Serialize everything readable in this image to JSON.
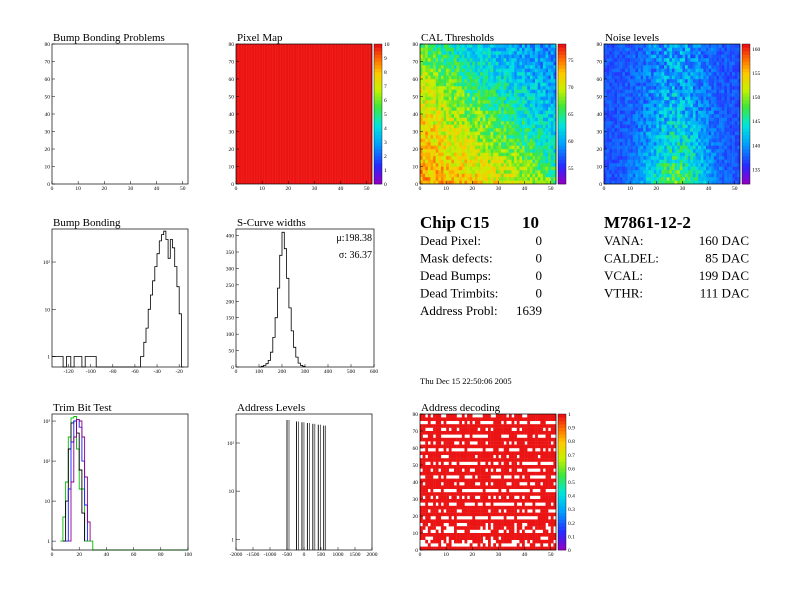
{
  "page": {
    "chip_title": "Chip C15",
    "chip_grade": "10",
    "module_title": "M7861-12-2",
    "date": "Thu Dec 15 22:50:06 2005",
    "chip_stats": [
      {
        "label": "Dead Pixel:",
        "value": "0"
      },
      {
        "label": "Mask defects:",
        "value": "0"
      },
      {
        "label": "Dead Bumps:",
        "value": "0"
      },
      {
        "label": "Dead Trimbits:",
        "value": "0"
      },
      {
        "label": "Address Probl:",
        "value": "1639"
      }
    ],
    "module_stats": [
      {
        "label": "VANA:",
        "value": "160 DAC"
      },
      {
        "label": "CALDEL:",
        "value": "85 DAC"
      },
      {
        "label": "VCAL:",
        "value": "199 DAC"
      },
      {
        "label": "VTHR:",
        "value": "111 DAC"
      }
    ]
  },
  "chart_data": [
    {
      "id": "bump-bonding-problems",
      "type": "heatmap",
      "title": "Bump Bonding Problems",
      "xlim": [
        0,
        52
      ],
      "ylim": [
        0,
        80
      ],
      "xticks": [
        "0",
        "10",
        "20",
        "30",
        "40",
        "50"
      ],
      "yticks": [
        "0",
        "10",
        "20",
        "30",
        "40",
        "50",
        "60",
        "70",
        "80"
      ],
      "fill": "empty",
      "colorbar": null
    },
    {
      "id": "pixel-map",
      "type": "heatmap",
      "title": "Pixel Map",
      "xlim": [
        0,
        52
      ],
      "ylim": [
        0,
        80
      ],
      "xticks": [
        "0",
        "10",
        "20",
        "30",
        "40",
        "50"
      ],
      "yticks": [
        "0",
        "10",
        "20",
        "30",
        "40",
        "50",
        "60",
        "70",
        "80"
      ],
      "fill": "uniform",
      "value": 10,
      "colorbar": {
        "min": 0,
        "max": 10,
        "ticks": [
          "0",
          "1",
          "2",
          "3",
          "4",
          "5",
          "6",
          "7",
          "8",
          "9",
          "10"
        ]
      }
    },
    {
      "id": "cal-thresholds",
      "type": "heatmap",
      "title": "CAL Thresholds",
      "xlim": [
        0,
        52
      ],
      "ylim": [
        0,
        80
      ],
      "xticks": [
        "0",
        "10",
        "20",
        "30",
        "40",
        "50"
      ],
      "yticks": [
        "0",
        "10",
        "20",
        "30",
        "40",
        "50",
        "60",
        "70",
        "80"
      ],
      "fill": "gradient",
      "value_range": [
        52,
        78
      ],
      "description_levels": {
        "top_left": 78,
        "center": 66,
        "bottom_right": 54
      },
      "colorbar": {
        "min": 52,
        "max": 78,
        "ticks": [
          "55",
          "60",
          "65",
          "70",
          "75"
        ]
      }
    },
    {
      "id": "noise-levels",
      "type": "heatmap",
      "title": "Noise levels",
      "xlim": [
        0,
        52
      ],
      "ylim": [
        0,
        80
      ],
      "xticks": [
        "0",
        "10",
        "20",
        "30",
        "40",
        "50"
      ],
      "yticks": [
        "0",
        "10",
        "20",
        "30",
        "40",
        "50",
        "60",
        "70",
        "80"
      ],
      "fill": "noise",
      "value_range": [
        132,
        161
      ],
      "hotspot_column": 27,
      "colorbar": {
        "min": 132,
        "max": 161,
        "ticks": [
          "135",
          "140",
          "145",
          "150",
          "155",
          "160"
        ]
      }
    },
    {
      "id": "bump-bonding",
      "type": "line",
      "title": "Bump Bonding",
      "xlim": [
        -135,
        -12
      ],
      "yscale": "log",
      "ylim": [
        0.6,
        500
      ],
      "xticks": [
        "-120",
        "-100",
        "-80",
        "-60",
        "-40",
        "-20"
      ],
      "yticks": [
        "1",
        "10",
        "10²"
      ],
      "x": [
        -135,
        -128,
        -125,
        -122,
        -118,
        -115,
        -112,
        -108,
        -105,
        -100,
        -95,
        -90,
        -80,
        -70,
        -60,
        -55,
        -52,
        -50,
        -48,
        -46,
        -44,
        -42,
        -40,
        -38,
        -36,
        -34,
        -32,
        -30,
        -28,
        -26,
        -24,
        -22,
        -20,
        -18,
        -16
      ],
      "values": [
        1,
        1,
        0.6,
        1,
        0.6,
        1,
        1,
        0.6,
        1,
        1,
        0.6,
        0.6,
        0.6,
        0.6,
        0.6,
        1,
        2,
        4,
        10,
        20,
        40,
        80,
        150,
        280,
        380,
        450,
        300,
        120,
        300,
        200,
        80,
        30,
        8,
        0.6,
        0.6
      ]
    },
    {
      "id": "s-curve-widths",
      "type": "line",
      "title": "S-Curve widths",
      "xlim": [
        0,
        600
      ],
      "ylim": [
        0,
        420
      ],
      "xticks": [
        "0",
        "100",
        "200",
        "300",
        "400",
        "500",
        "600"
      ],
      "yticks": [
        "0",
        "50",
        "100",
        "150",
        "200",
        "250",
        "300",
        "350",
        "400"
      ],
      "stats": {
        "mean": "μ:198.38",
        "sigma": "σ: 36.37"
      },
      "x": [
        100,
        110,
        120,
        130,
        140,
        150,
        160,
        170,
        180,
        190,
        200,
        210,
        220,
        230,
        240,
        250,
        260,
        270,
        280,
        290,
        300
      ],
      "values": [
        0,
        2,
        5,
        10,
        20,
        45,
        90,
        150,
        240,
        340,
        410,
        360,
        270,
        180,
        110,
        60,
        30,
        12,
        5,
        2,
        0
      ]
    },
    {
      "id": "trim-bit-test",
      "type": "line",
      "title": "Trim Bit Test",
      "xlim": [
        0,
        100
      ],
      "yscale": "log",
      "ylim": [
        0.6,
        1500
      ],
      "xticks": [
        "0",
        "20",
        "40",
        "60",
        "80",
        "100"
      ],
      "yticks": [
        "1",
        "10",
        "10²",
        "10³"
      ],
      "series": [
        {
          "color": "#00bb00",
          "x": [
            6,
            8,
            10,
            12,
            14,
            16,
            18,
            20,
            24,
            30,
            40,
            50,
            60,
            70,
            80,
            90,
            100
          ],
          "values": [
            1,
            4,
            30,
            400,
            1200,
            1300,
            200,
            20,
            1,
            0.6,
            0.6,
            0.6,
            0.6,
            0.6,
            0.6,
            0.6,
            0.6
          ]
        },
        {
          "color": "#000000",
          "x": [
            8,
            10,
            12,
            14,
            16,
            18,
            20,
            22,
            24
          ],
          "values": [
            1,
            10,
            200,
            900,
            1000,
            500,
            60,
            5,
            1
          ]
        },
        {
          "color": "#1a1aff",
          "x": [
            10,
            12,
            14,
            16,
            18,
            20,
            22,
            24,
            26
          ],
          "values": [
            1,
            20,
            300,
            1000,
            1100,
            700,
            100,
            8,
            1
          ]
        },
        {
          "color": "#8a008a",
          "x": [
            12,
            14,
            16,
            18,
            20,
            22,
            24,
            26,
            28
          ],
          "values": [
            1,
            30,
            400,
            1100,
            1000,
            400,
            40,
            3,
            1
          ]
        }
      ]
    },
    {
      "id": "address-levels",
      "type": "line",
      "title": "Address Levels",
      "xlim": [
        -2000,
        2000
      ],
      "yscale": "log",
      "ylim": [
        0.6,
        400
      ],
      "xticks": [
        "-2000",
        "-1500",
        "-1000",
        "-500",
        "0",
        "500",
        "1000",
        "1500",
        "2000"
      ],
      "yticks": [
        "1",
        "10",
        "10²"
      ],
      "peaks": [
        {
          "x": -500,
          "height": 300
        },
        {
          "x": -220,
          "height": 280
        },
        {
          "x": -60,
          "height": 270
        },
        {
          "x": 100,
          "height": 260
        },
        {
          "x": 260,
          "height": 250
        },
        {
          "x": 420,
          "height": 240
        },
        {
          "x": 580,
          "height": 230
        }
      ]
    },
    {
      "id": "address-decoding",
      "type": "heatmap",
      "title": "Address decoding",
      "xlim": [
        0,
        52
      ],
      "ylim": [
        0,
        80
      ],
      "xticks": [
        "0",
        "10",
        "20",
        "30",
        "40",
        "50"
      ],
      "yticks": [
        "0",
        "10",
        "20",
        "30",
        "40",
        "50",
        "60",
        "70",
        "80"
      ],
      "fill": "stripes",
      "colorbar": {
        "min": 0,
        "max": 1,
        "ticks": [
          "0",
          "0.1",
          "0.2",
          "0.3",
          "0.4",
          "0.5",
          "0.6",
          "0.7",
          "0.8",
          "0.9",
          "1"
        ]
      }
    }
  ]
}
